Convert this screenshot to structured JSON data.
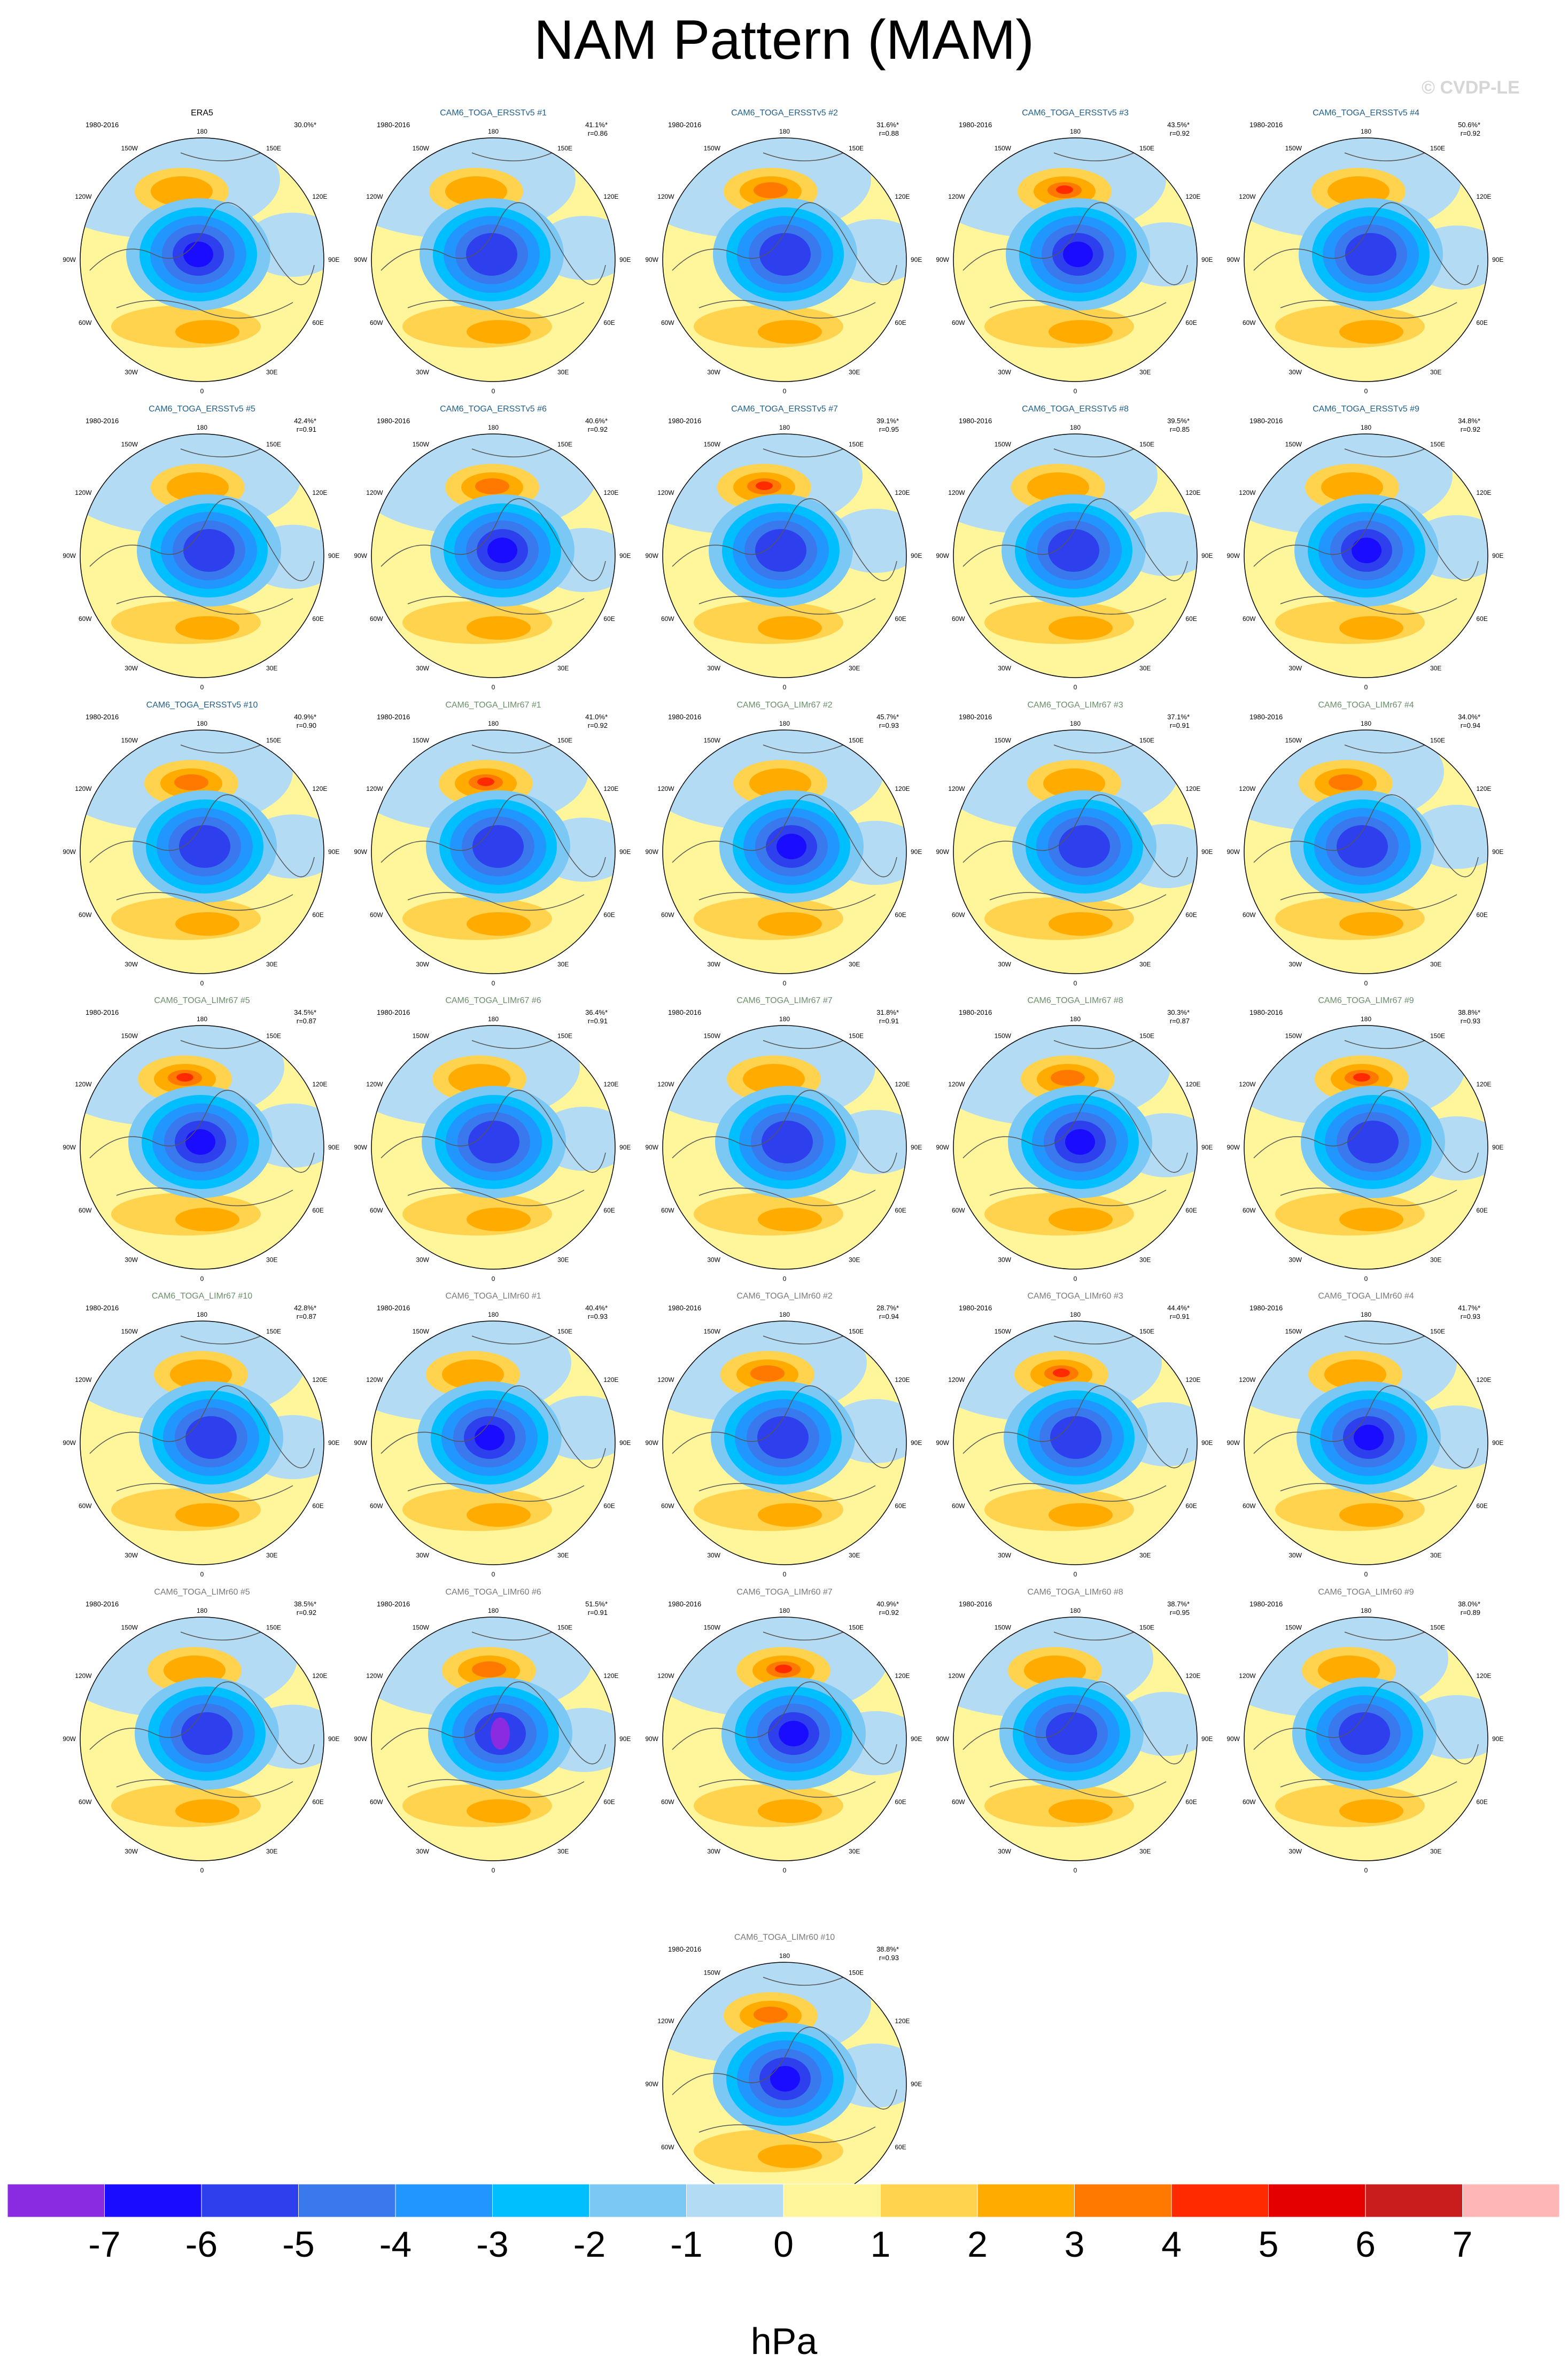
{
  "title": "NAM Pattern (MAM)",
  "watermark": "© CVDP-LE",
  "colors": {
    "land_contour": "#555555",
    "title_era5": "#000000",
    "title_ersst": "#1f5f8b",
    "title_limr67": "#6b8e6b",
    "title_limr60": "#7a7a7a"
  },
  "map_labels": {
    "top": "180",
    "bottom": "0",
    "left": "90W",
    "right": "90E",
    "upper_left": "150W",
    "upper_right": "150E",
    "left_upper": "120W",
    "right_upper": "120E",
    "left_lower": "60W",
    "right_lower": "60E",
    "lower_left": "30W",
    "lower_right": "30E"
  },
  "chart_data": {
    "type": "heatmap",
    "projection": "polar stereographic (Northern Hemisphere)",
    "variable": "NAM",
    "period": "1980-2016",
    "panels": [
      {
        "name": "ERA5",
        "group": "era5",
        "pct": "30.0%*",
        "r": ""
      },
      {
        "name": "CAM6_TOGA_ERSSTv5 #1",
        "group": "ersst",
        "pct": "41.1%*",
        "r": "r=0.86"
      },
      {
        "name": "CAM6_TOGA_ERSSTv5 #2",
        "group": "ersst",
        "pct": "31.6%*",
        "r": "r=0.88"
      },
      {
        "name": "CAM6_TOGA_ERSSTv5 #3",
        "group": "ersst",
        "pct": "43.5%*",
        "r": "r=0.92"
      },
      {
        "name": "CAM6_TOGA_ERSSTv5 #4",
        "group": "ersst",
        "pct": "50.6%*",
        "r": "r=0.92"
      },
      {
        "name": "CAM6_TOGA_ERSSTv5 #5",
        "group": "ersst",
        "pct": "42.4%*",
        "r": "r=0.91"
      },
      {
        "name": "CAM6_TOGA_ERSSTv5 #6",
        "group": "ersst",
        "pct": "40.6%*",
        "r": "r=0.92"
      },
      {
        "name": "CAM6_TOGA_ERSSTv5 #7",
        "group": "ersst",
        "pct": "39.1%*",
        "r": "r=0.95"
      },
      {
        "name": "CAM6_TOGA_ERSSTv5 #8",
        "group": "ersst",
        "pct": "39.5%*",
        "r": "r=0.85"
      },
      {
        "name": "CAM6_TOGA_ERSSTv5 #9",
        "group": "ersst",
        "pct": "34.8%*",
        "r": "r=0.92"
      },
      {
        "name": "CAM6_TOGA_ERSSTv5 #10",
        "group": "ersst",
        "pct": "40.9%*",
        "r": "r=0.90"
      },
      {
        "name": "CAM6_TOGA_LIMr67 #1",
        "group": "limr67",
        "pct": "41.0%*",
        "r": "r=0.92"
      },
      {
        "name": "CAM6_TOGA_LIMr67 #2",
        "group": "limr67",
        "pct": "45.7%*",
        "r": "r=0.93"
      },
      {
        "name": "CAM6_TOGA_LIMr67 #3",
        "group": "limr67",
        "pct": "37.1%*",
        "r": "r=0.91"
      },
      {
        "name": "CAM6_TOGA_LIMr67 #4",
        "group": "limr67",
        "pct": "34.0%*",
        "r": "r=0.94"
      },
      {
        "name": "CAM6_TOGA_LIMr67 #5",
        "group": "limr67",
        "pct": "34.5%*",
        "r": "r=0.87"
      },
      {
        "name": "CAM6_TOGA_LIMr67 #6",
        "group": "limr67",
        "pct": "36.4%*",
        "r": "r=0.91"
      },
      {
        "name": "CAM6_TOGA_LIMr67 #7",
        "group": "limr67",
        "pct": "31.8%*",
        "r": "r=0.91"
      },
      {
        "name": "CAM6_TOGA_LIMr67 #8",
        "group": "limr67",
        "pct": "30.3%*",
        "r": "r=0.87"
      },
      {
        "name": "CAM6_TOGA_LIMr67 #9",
        "group": "limr67",
        "pct": "38.8%*",
        "r": "r=0.93"
      },
      {
        "name": "CAM6_TOGA_LIMr67 #10",
        "group": "limr67",
        "pct": "42.8%*",
        "r": "r=0.87"
      },
      {
        "name": "CAM6_TOGA_LIMr60 #1",
        "group": "limr60",
        "pct": "40.4%*",
        "r": "r=0.93"
      },
      {
        "name": "CAM6_TOGA_LIMr60 #2",
        "group": "limr60",
        "pct": "28.7%*",
        "r": "r=0.94"
      },
      {
        "name": "CAM6_TOGA_LIMr60 #3",
        "group": "limr60",
        "pct": "44.4%*",
        "r": "r=0.91"
      },
      {
        "name": "CAM6_TOGA_LIMr60 #4",
        "group": "limr60",
        "pct": "41.7%*",
        "r": "r=0.93"
      },
      {
        "name": "CAM6_TOGA_LIMr60 #5",
        "group": "limr60",
        "pct": "38.5%*",
        "r": "r=0.92"
      },
      {
        "name": "CAM6_TOGA_LIMr60 #6",
        "group": "limr60",
        "pct": "51.5%*",
        "r": "r=0.91"
      },
      {
        "name": "CAM6_TOGA_LIMr60 #7",
        "group": "limr60",
        "pct": "40.9%*",
        "r": "r=0.92"
      },
      {
        "name": "CAM6_TOGA_LIMr60 #8",
        "group": "limr60",
        "pct": "38.7%*",
        "r": "r=0.95"
      },
      {
        "name": "CAM6_TOGA_LIMr60 #9",
        "group": "limr60",
        "pct": "38.0%*",
        "r": "r=0.89"
      },
      {
        "name": "CAM6_TOGA_LIMr60 #10",
        "group": "limr60",
        "pct": "38.8%*",
        "r": "r=0.93"
      }
    ],
    "colorbar": {
      "label": "hPa",
      "ticks": [
        -7,
        -6,
        -5,
        -4,
        -3,
        -2,
        -1,
        0,
        1,
        2,
        3,
        4,
        5,
        6,
        7
      ],
      "tick_labels": [
        "-7",
        "-6",
        "-5",
        "-4",
        "-3",
        "-2",
        "-1",
        "0",
        "1",
        "2",
        "3",
        "4",
        "5",
        "6",
        "7"
      ],
      "colors": [
        "#8a2be2",
        "#1a0dff",
        "#2e3fee",
        "#3a78ee",
        "#2196ff",
        "#00bfff",
        "#7cc8f5",
        "#b3dcf4",
        "#fff59a",
        "#ffd34d",
        "#ffab00",
        "#ff7800",
        "#ff2a00",
        "#e50000",
        "#c91d1d",
        "#ffb6b6"
      ]
    }
  }
}
